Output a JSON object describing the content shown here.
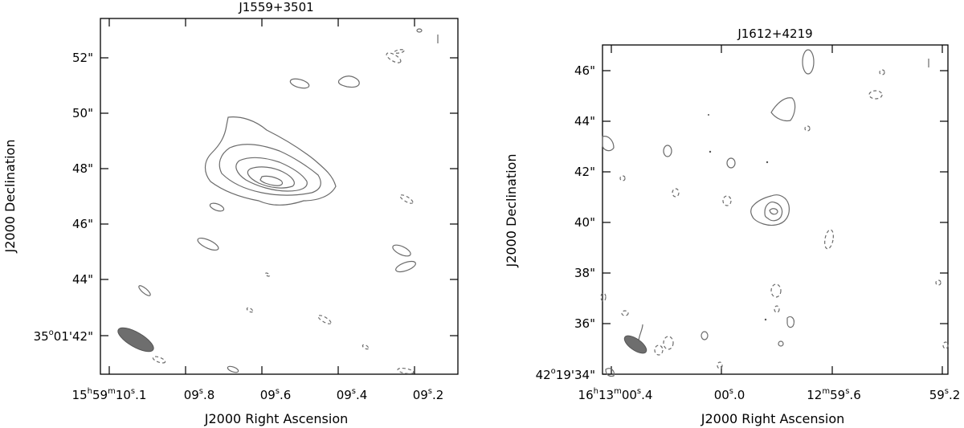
{
  "panels": [
    {
      "title": "J1559+3501",
      "xlabel": "J2000 Right Ascension",
      "ylabel": "J2000 Declination",
      "x_ticks": [
        {
          "main": "15",
          "sup1": "h",
          "m": "59",
          "sup2": "m",
          "s": "10",
          "sup3": "s",
          "frac": ".1"
        },
        {
          "main": "09",
          "sup": "s",
          "frac": ".8"
        },
        {
          "main": "09",
          "sup": "s",
          "frac": ".6"
        },
        {
          "main": "09",
          "sup": "s",
          "frac": ".4"
        },
        {
          "main": "09",
          "sup": "s",
          "frac": ".2"
        }
      ],
      "y_ticks": [
        {
          "label": "35",
          "sup": "o",
          "rest": "01'42\""
        },
        {
          "label": "44\""
        },
        {
          "label": "46\""
        },
        {
          "label": "48\""
        },
        {
          "label": "50\""
        },
        {
          "label": "52\""
        }
      ]
    },
    {
      "title": "J1612+4219",
      "xlabel": "J2000 Right Ascension",
      "ylabel": "J2000 Declination",
      "x_ticks": [
        {
          "main": "16",
          "sup1": "h",
          "m": "13",
          "sup2": "m",
          "s": "00",
          "sup3": "s",
          "frac": ".4"
        },
        {
          "main": "00",
          "sup": "s",
          "frac": ".0"
        },
        {
          "main": "12",
          "sup1": "m",
          "s": "59",
          "sup2": "s",
          "frac": ".6"
        },
        {
          "main": "59",
          "sup": "s",
          "frac": ".2"
        }
      ],
      "y_ticks": [
        {
          "label": "42",
          "sup": "o",
          "rest": "19'34\""
        },
        {
          "label": "36\""
        },
        {
          "label": "38\""
        },
        {
          "label": "40\""
        },
        {
          "label": "42\""
        },
        {
          "label": "44\""
        },
        {
          "label": "46\""
        }
      ]
    }
  ],
  "colors": {
    "contour": "#6b6b6b",
    "beam": "#6e6e6e",
    "frame": "#000000"
  }
}
